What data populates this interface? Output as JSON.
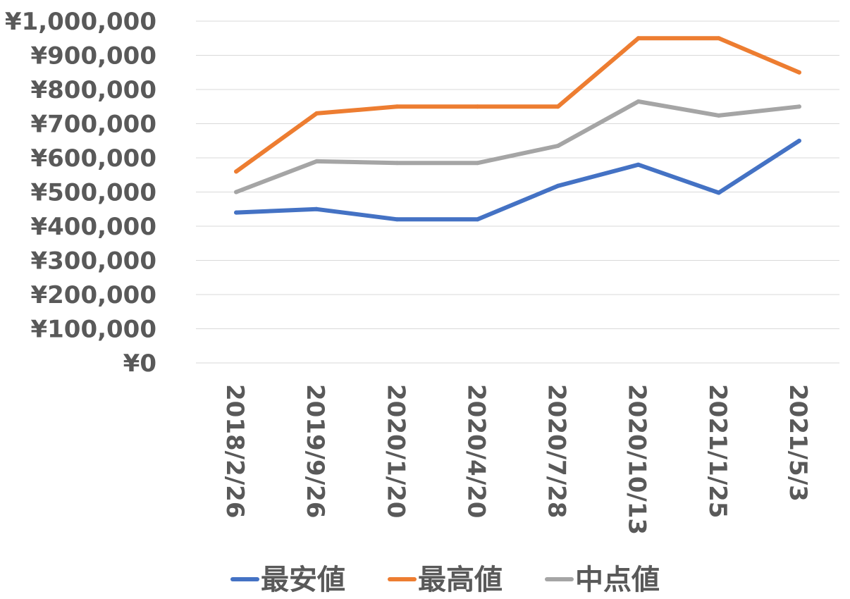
{
  "chart_data": {
    "type": "line",
    "title": "",
    "xlabel": "",
    "ylabel": "",
    "categories": [
      "2018/2/26",
      "2019/9/26",
      "2020/1/20",
      "2020/4/20",
      "2020/7/28",
      "2020/10/13",
      "2021/1/25",
      "2021/5/3"
    ],
    "ylim": [
      0,
      1000000
    ],
    "y_ticks": [
      0,
      100000,
      200000,
      300000,
      400000,
      500000,
      600000,
      700000,
      800000,
      900000,
      1000000
    ],
    "y_tick_labels": [
      "¥0",
      "¥100,000",
      "¥200,000",
      "¥300,000",
      "¥400,000",
      "¥500,000",
      "¥600,000",
      "¥700,000",
      "¥800,000",
      "¥900,000",
      "¥1,000,000"
    ],
    "grid": true,
    "legend_position": "bottom",
    "series": [
      {
        "name": "最安値",
        "color": "#4472C4",
        "values": [
          440000,
          450000,
          420000,
          420000,
          518000,
          580000,
          498000,
          650000
        ]
      },
      {
        "name": "最高値",
        "color": "#ED7D31",
        "values": [
          560000,
          730000,
          750000,
          750000,
          750000,
          950000,
          950000,
          850000
        ]
      },
      {
        "name": "中点値",
        "color": "#A5A5A5",
        "values": [
          500000,
          590000,
          585000,
          585000,
          635000,
          765000,
          724000,
          750000
        ]
      }
    ]
  }
}
